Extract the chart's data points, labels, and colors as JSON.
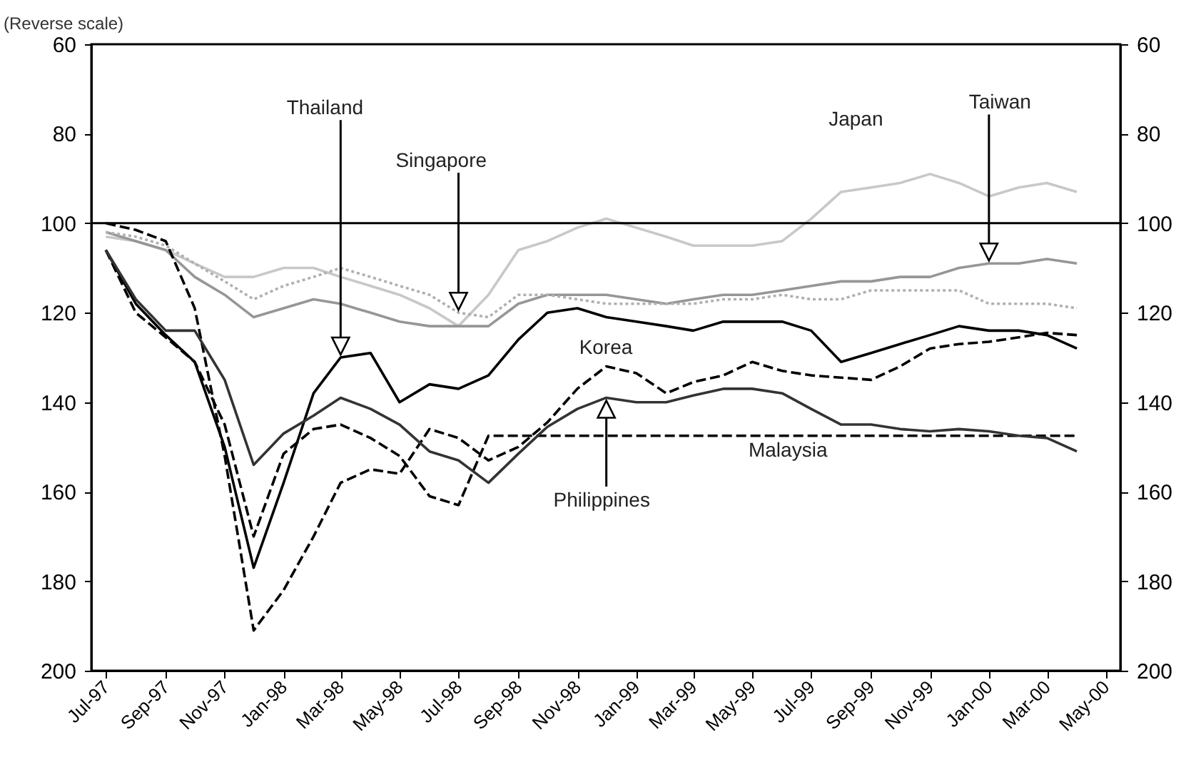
{
  "chart_data": {
    "type": "line",
    "ylabel": "(Reverse scale)",
    "x": [
      "1997-07",
      "1997-08",
      "1997-09",
      "1997-10",
      "1997-11",
      "1997-12",
      "1998-01",
      "1998-02",
      "1998-03",
      "1998-04",
      "1998-05",
      "1998-06",
      "1998-07",
      "1998-08",
      "1998-09",
      "1998-10",
      "1998-11",
      "1998-12",
      "1999-01",
      "1999-02",
      "1999-03",
      "1999-04",
      "1999-05",
      "1999-06",
      "1999-07",
      "1999-08",
      "1999-09",
      "1999-10",
      "1999-11",
      "1999-12",
      "2000-01",
      "2000-02",
      "2000-03",
      "2000-04"
    ],
    "series": [
      {
        "name": "Japan",
        "color": "#c8c8c8",
        "line_style": "solid",
        "values": [
          103,
          104,
          106,
          109,
          112,
          112,
          110,
          110,
          112,
          114,
          116,
          119,
          123,
          116,
          106,
          104,
          101,
          99,
          101,
          103,
          105,
          105,
          105,
          104,
          99,
          93,
          92,
          91,
          89,
          91,
          94,
          92,
          91,
          93
        ]
      },
      {
        "name": "Taiwan",
        "color": "#969696",
        "line_style": "solid",
        "values": [
          102,
          104,
          106,
          112,
          116,
          121,
          119,
          117,
          118,
          120,
          122,
          123,
          123,
          123,
          118,
          116,
          116,
          116,
          117,
          118,
          117,
          116,
          116,
          115,
          114,
          113,
          113,
          112,
          112,
          110,
          109,
          109,
          108,
          109
        ]
      },
      {
        "name": "Singapore",
        "color": "#b0b0b0",
        "line_style": "dotted",
        "values": [
          102,
          103,
          105,
          109,
          113,
          117,
          114,
          112,
          110,
          112,
          114,
          116,
          120,
          121,
          116,
          116,
          117,
          118,
          118,
          118,
          118,
          117,
          117,
          116,
          117,
          117,
          115,
          115,
          115,
          115,
          118,
          118,
          118,
          119
        ]
      },
      {
        "name": "Thailand",
        "color": "#000000",
        "line_style": "solid",
        "values": [
          106,
          118,
          125,
          131,
          150,
          177,
          158,
          138,
          130,
          129,
          140,
          136,
          137,
          134,
          126,
          120,
          119,
          121,
          122,
          123,
          124,
          122,
          122,
          122,
          124,
          131,
          129,
          127,
          125,
          123,
          124,
          124,
          125,
          128
        ]
      },
      {
        "name": "Korea",
        "color": "#000000",
        "line_style": "dashed",
        "values": [
          100,
          101.5,
          104,
          119,
          152,
          191,
          182,
          170,
          158,
          155,
          156,
          146,
          148,
          153,
          150,
          144.5,
          137,
          132,
          133.5,
          138,
          135.5,
          134,
          131,
          133,
          134,
          134.5,
          135,
          132,
          128,
          127,
          126.5,
          125.5,
          124.5,
          125
        ]
      },
      {
        "name": "Malaysia",
        "color": "#000000",
        "line_style": "dashed",
        "values": [
          106,
          120,
          125.5,
          131,
          145,
          170,
          151.5,
          146,
          145,
          148,
          152,
          161,
          163,
          147.5,
          147.5,
          147.5,
          147.5,
          147.5,
          147.5,
          147.5,
          147.5,
          147.5,
          147.5,
          147.5,
          147.5,
          147.5,
          147.5,
          147.5,
          147.5,
          147.5,
          147.5,
          147.5,
          147.5,
          147.5
        ]
      },
      {
        "name": "Philippines",
        "color": "#333333",
        "line_style": "solid",
        "values": [
          106,
          117,
          124,
          124,
          135,
          154,
          147,
          143,
          139,
          141.5,
          145,
          151,
          153,
          158,
          151.5,
          145.5,
          141.5,
          139,
          140,
          140,
          138.5,
          137,
          137,
          138,
          141.5,
          145,
          145,
          146,
          146.5,
          146,
          146.5,
          147.5,
          148,
          151
        ]
      }
    ],
    "xlim": [
      "1997-06-16",
      "2000-05-16"
    ],
    "xticks": [
      {
        "value": "1997-07",
        "label": "Jul-97"
      },
      {
        "value": "1997-09",
        "label": "Sep-97"
      },
      {
        "value": "1997-11",
        "label": "Nov-97"
      },
      {
        "value": "1998-01",
        "label": "Jan-98"
      },
      {
        "value": "1998-03",
        "label": "Mar-98"
      },
      {
        "value": "1998-05",
        "label": "May-98"
      },
      {
        "value": "1998-07",
        "label": "Jul-98"
      },
      {
        "value": "1998-09",
        "label": "Sep-98"
      },
      {
        "value": "1998-11",
        "label": "Nov-98"
      },
      {
        "value": "1999-01",
        "label": "Jan-99"
      },
      {
        "value": "1999-03",
        "label": "Mar-99"
      },
      {
        "value": "1999-05",
        "label": "May-99"
      },
      {
        "value": "1999-07",
        "label": "Jul-99"
      },
      {
        "value": "1999-09",
        "label": "Sep-99"
      },
      {
        "value": "1999-11",
        "label": "Nov-99"
      },
      {
        "value": "2000-01",
        "label": "Jan-00"
      },
      {
        "value": "2000-03",
        "label": "Mar-00"
      },
      {
        "value": "2000-05",
        "label": "May-00"
      }
    ],
    "ylim": [
      200,
      60
    ],
    "yticks": [
      60,
      80,
      100,
      120,
      140,
      160,
      180,
      200
    ],
    "y2lim": [
      200,
      60
    ],
    "y2ticks": [
      60,
      80,
      100,
      120,
      140,
      160,
      180,
      200
    ],
    "ref_lines": [
      {
        "axis": "y",
        "value": 100,
        "color": "#000000"
      }
    ],
    "grid": false
  }
}
